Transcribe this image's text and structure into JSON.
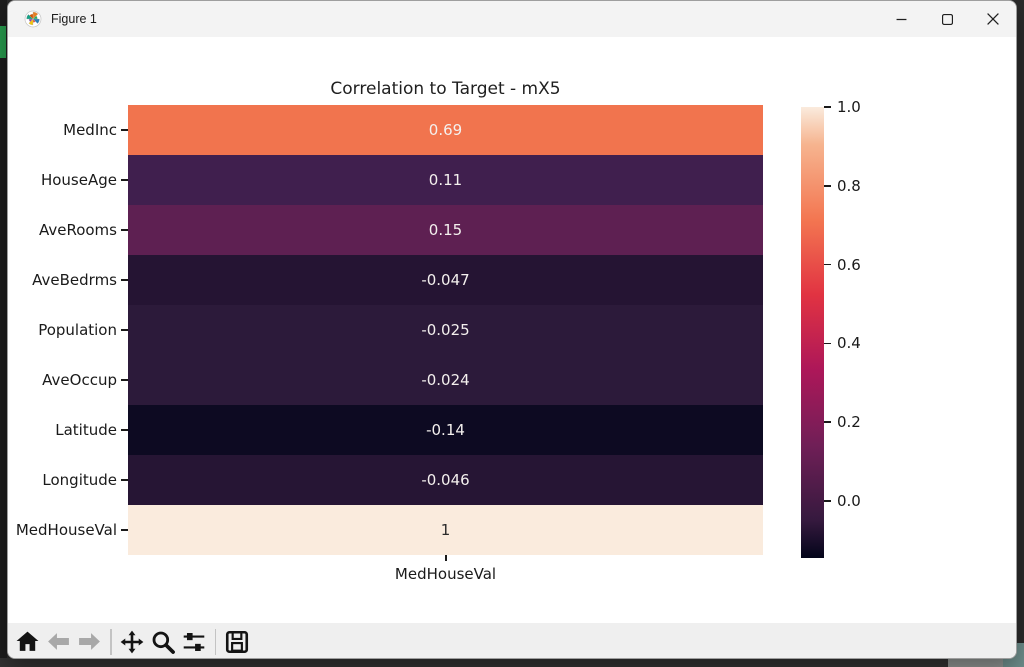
{
  "window": {
    "title": "Figure 1",
    "app_icon": "matplotlib-logo",
    "controls": [
      {
        "name": "minimize"
      },
      {
        "name": "maximize"
      },
      {
        "name": "close"
      }
    ]
  },
  "chart_data": {
    "type": "heatmap",
    "title": "Correlation to Target - mX5",
    "x_categories": [
      "MedHouseVal"
    ],
    "y_categories": [
      "MedInc",
      "HouseAge",
      "AveRooms",
      "AveBedrms",
      "Population",
      "AveOccup",
      "Latitude",
      "Longitude",
      "MedHouseVal"
    ],
    "series": [
      {
        "name": "MedHouseVal",
        "values": [
          0.69,
          0.11,
          0.15,
          -0.047,
          -0.025,
          -0.024,
          -0.14,
          -0.046,
          1
        ]
      }
    ],
    "value_labels": [
      "0.69",
      "0.11",
      "0.15",
      "-0.047",
      "-0.025",
      "-0.024",
      "-0.14",
      "-0.046",
      "1"
    ],
    "cell_colors": [
      "#f1744e",
      "#401f4e",
      "#5e2052",
      "#251433",
      "#2c1a3a",
      "#2c1a3a",
      "#0d0a22",
      "#261534",
      "#faebdd"
    ],
    "cell_text_colors": [
      "#f4f0ee",
      "#f4f0ee",
      "#f4f0ee",
      "#f4f0ee",
      "#f4f0ee",
      "#f4f0ee",
      "#f4f0ee",
      "#f4f0ee",
      "#2b2b2b"
    ],
    "colormap": "rocket",
    "grid": false,
    "legend_position": "right-colorbar",
    "colorbar": {
      "tick_labels": [
        "1.0",
        "0.8",
        "0.6",
        "0.4",
        "0.2",
        "0.0"
      ],
      "tick_values": [
        1.0,
        0.8,
        0.6,
        0.4,
        0.2,
        0.0
      ],
      "vmin": -0.145,
      "vmax": 1.0,
      "gradient_stops": [
        {
          "color": "#03051a",
          "pos": 0
        },
        {
          "color": "#35193e",
          "pos": 8.3
        },
        {
          "color": "#701f57",
          "pos": 25
        },
        {
          "color": "#ad1759",
          "pos": 41.7
        },
        {
          "color": "#e13342",
          "pos": 58.3
        },
        {
          "color": "#f37651",
          "pos": 75
        },
        {
          "color": "#f6b48f",
          "pos": 91.7
        },
        {
          "color": "#faebdd",
          "pos": 100
        }
      ]
    }
  },
  "toolbar": {
    "buttons": [
      {
        "name": "home",
        "enabled": true
      },
      {
        "name": "back",
        "enabled": false
      },
      {
        "name": "forward",
        "enabled": false
      },
      {
        "name": "pan",
        "enabled": true
      },
      {
        "name": "zoom-to-rect",
        "enabled": true
      },
      {
        "name": "configure-subplots",
        "enabled": true
      },
      {
        "name": "save",
        "enabled": true
      }
    ]
  }
}
